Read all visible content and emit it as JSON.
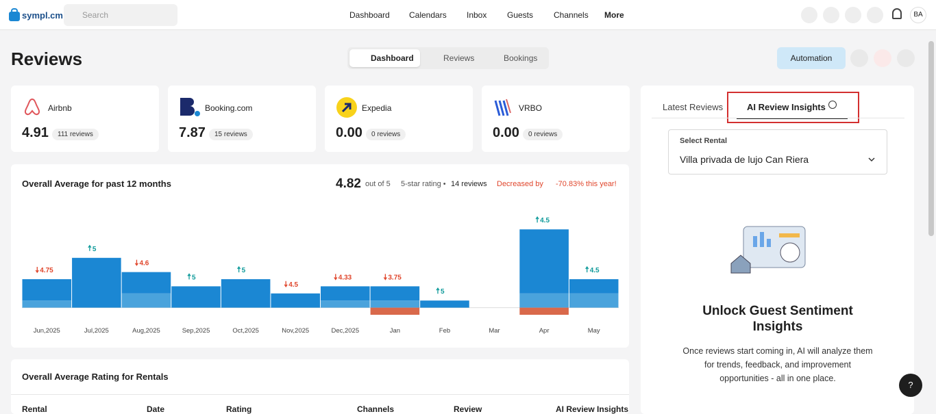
{
  "header": {
    "logo": "sympl.cm",
    "search_placeholder": "Search",
    "nav": [
      "Dashboard",
      "Calendars",
      "Inbox",
      "Guests",
      "Channels",
      "More"
    ],
    "avatar": "BA"
  },
  "page": {
    "title": "Reviews",
    "tabs": [
      "Dashboard",
      "Reviews",
      "Bookings"
    ],
    "automation": "Automation"
  },
  "channels": [
    {
      "name": "Airbnb",
      "rating": "4.91",
      "reviews": "111 reviews"
    },
    {
      "name": "Booking.com",
      "rating": "7.87",
      "reviews": "15 reviews"
    },
    {
      "name": "Expedia",
      "rating": "0.00",
      "reviews": "0 reviews"
    },
    {
      "name": "VRBO",
      "rating": "0.00",
      "reviews": "0 reviews"
    }
  ],
  "chart_data": {
    "type": "bar",
    "title": "Overall Average for past 12 months",
    "average": "4.82",
    "out_of": "out of 5",
    "rating_text": "5-star rating •",
    "reviews": "14 reviews",
    "change": "Decreased by",
    "change_value": "-70.83% this year!",
    "categories": [
      "Jun,2025",
      "Jul,2025",
      "Aug,2025",
      "Sep,2025",
      "Oct,2025",
      "Nov,2025",
      "Dec,2025",
      "Jan",
      "Feb",
      "Mar",
      "Apr",
      "May"
    ],
    "values": [
      3,
      7,
      3,
      3,
      4,
      2,
      2,
      2,
      1,
      0,
      9,
      2
    ],
    "lower_values": [
      1,
      0,
      2,
      0,
      0,
      0,
      1,
      1,
      0,
      0,
      2,
      2
    ],
    "below_values": [
      0,
      0,
      0,
      0,
      0,
      0,
      0,
      1,
      0,
      0,
      1,
      0
    ],
    "ratings": [
      4.75,
      5,
      4.6,
      5,
      5,
      4.5,
      4.33,
      3.75,
      5,
      null,
      4.5,
      4.5
    ],
    "trend": [
      "down",
      "up",
      "down",
      "up",
      "up",
      "down",
      "down",
      "down",
      "up",
      null,
      "up",
      "up"
    ],
    "color": "#1b87d3",
    "lower_color": "#4aa3dc",
    "below_color": "#d9694b",
    "up_color": "#0e9a9a",
    "down_color": "#e0462c",
    "ylim": [
      -1,
      14
    ]
  },
  "rentals": {
    "title": "Overall Average Rating for Rentals",
    "columns": [
      "Rental",
      "Date",
      "Rating",
      "Channels",
      "Review",
      "AI Review Insights"
    ]
  },
  "insights": {
    "tabs": [
      "Latest Reviews",
      "AI Review Insights"
    ],
    "select_label": "Select Rental",
    "select_value": "Villa privada de lujo Can Riera",
    "heading": "Unlock Guest Sentiment Insights",
    "body": "Once reviews start coming in, AI will analyze them for trends, feedback, and improvement opportunities - all in one place.",
    "help": "?"
  }
}
